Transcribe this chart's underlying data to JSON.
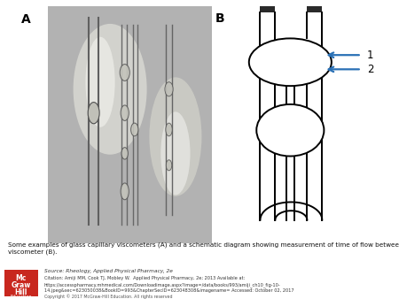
{
  "panel_a_label": "A",
  "panel_b_label": "B",
  "caption": "Some examples of glass capillary viscometers (A) and a schematic diagram showing measurement of time of flow between two points (1 and 2) in a\nviscometer (B).",
  "source_line1": "Source: Rheology, Applied Physical Pharmacy, 2e",
  "citation_line2": "Citation: Amiji MM, Cook TJ, Mobley W.  Applied Physical Pharmacy, 2e; 2013 Available at:",
  "citation_line3": "https://accesspharmacy.mhmedical.com/Downloadimage.aspx?image=/data/books/993/amiji_ch10_fig-10-",
  "citation_line4": "14.jpeg&sec=623050038&BookID=993&ChapterSecID=623048308&imagename= Accessed: October 02, 2017",
  "citation_line5": "Copyright © 2017 McGraw-Hill Education. All rights reserved",
  "bg_color": "#ffffff",
  "photo_bg": "#b0b0b0",
  "arrow_color": "#2970b5",
  "label_color": "#000000",
  "line_color": "#000000",
  "mcgraw_red": "#c8271e"
}
